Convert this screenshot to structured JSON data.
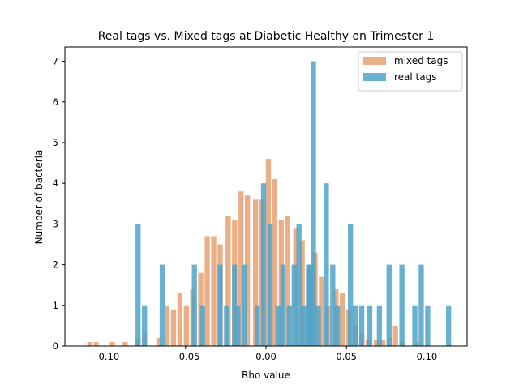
{
  "chart_data": {
    "type": "bar",
    "title": "Real tags vs. Mixed tags at Diabetic Healthy on Trimester 1",
    "xlabel": "Rho value",
    "ylabel": "Number of bacteria",
    "xlim": [
      -0.125,
      0.125
    ],
    "ylim": [
      0,
      7.35
    ],
    "xticks": [
      -0.1,
      -0.05,
      0.0,
      0.05,
      0.1
    ],
    "xtick_labels": [
      "−0.10",
      "−0.05",
      "0.00",
      "0.05",
      "0.10"
    ],
    "yticks": [
      0,
      1,
      2,
      3,
      4,
      5,
      6,
      7
    ],
    "ytick_labels": [
      "0",
      "1",
      "2",
      "3",
      "4",
      "5",
      "6",
      "7"
    ],
    "legend_position": "top-right",
    "series": [
      {
        "name": "mixed tags",
        "color": "#E8A173",
        "opacity": 0.85,
        "points": [
          [
            -0.1095,
            0.1
          ],
          [
            -0.1055,
            0.1
          ],
          [
            -0.0955,
            0.1
          ],
          [
            -0.0875,
            0.1
          ],
          [
            -0.0795,
            0.2
          ],
          [
            -0.0755,
            0.3
          ],
          [
            -0.0665,
            0.2
          ],
          [
            -0.0615,
            1.0
          ],
          [
            -0.0575,
            0.9
          ],
          [
            -0.0535,
            1.3
          ],
          [
            -0.0495,
            1.0
          ],
          [
            -0.0455,
            1.4
          ],
          [
            -0.0405,
            1.8
          ],
          [
            -0.0365,
            2.7
          ],
          [
            -0.0325,
            2.7
          ],
          [
            -0.0285,
            2.5
          ],
          [
            -0.0235,
            3.2
          ],
          [
            -0.0195,
            3.1
          ],
          [
            -0.0155,
            3.8
          ],
          [
            -0.0115,
            3.7
          ],
          [
            -0.0065,
            3.6
          ],
          [
            -0.0025,
            3.6
          ],
          [
            0.0015,
            4.6
          ],
          [
            0.0055,
            4.1
          ],
          [
            0.0095,
            3.1
          ],
          [
            0.0135,
            3.2
          ],
          [
            0.0185,
            2.9
          ],
          [
            0.0225,
            2.6
          ],
          [
            0.0265,
            1.9
          ],
          [
            0.0305,
            2.3
          ],
          [
            0.0345,
            1.7
          ],
          [
            0.0385,
            1.0
          ],
          [
            0.0435,
            1.4
          ],
          [
            0.0475,
            1.3
          ],
          [
            0.0515,
            0.9
          ],
          [
            0.0555,
            0.5
          ],
          [
            0.0595,
            0.3
          ],
          [
            0.0635,
            0.15
          ],
          [
            0.0685,
            0.15
          ],
          [
            0.0725,
            0.15
          ],
          [
            0.0765,
            0.2
          ],
          [
            0.0805,
            0.5
          ],
          [
            0.0845,
            0.1
          ],
          [
            0.0935,
            0.1
          ]
        ]
      },
      {
        "name": "real tags",
        "color": "#4FA3C9",
        "opacity": 0.85,
        "points": [
          [
            -0.0795,
            3
          ],
          [
            -0.0755,
            1
          ],
          [
            -0.0645,
            2
          ],
          [
            -0.0445,
            2
          ],
          [
            -0.0395,
            1
          ],
          [
            -0.0285,
            2
          ],
          [
            -0.0245,
            1
          ],
          [
            -0.0195,
            2
          ],
          [
            -0.0175,
            1
          ],
          [
            -0.0135,
            2
          ],
          [
            -0.0055,
            1
          ],
          [
            -0.0015,
            4
          ],
          [
            0.0025,
            3
          ],
          [
            0.0075,
            1
          ],
          [
            0.0105,
            2
          ],
          [
            0.0145,
            1
          ],
          [
            0.0175,
            2
          ],
          [
            0.0205,
            3
          ],
          [
            0.0235,
            1
          ],
          [
            0.0265,
            2
          ],
          [
            0.0275,
            2
          ],
          [
            0.0295,
            7
          ],
          [
            0.0325,
            1
          ],
          [
            0.0375,
            4
          ],
          [
            0.0415,
            2
          ],
          [
            0.0445,
            1
          ],
          [
            0.0495,
            0
          ],
          [
            0.0525,
            3
          ],
          [
            0.0555,
            1
          ],
          [
            0.0595,
            1
          ],
          [
            0.0645,
            1
          ],
          [
            0.0705,
            1
          ],
          [
            0.0765,
            2
          ],
          [
            0.0845,
            2
          ],
          [
            0.0925,
            1
          ],
          [
            0.0965,
            2
          ],
          [
            0.1005,
            1
          ],
          [
            0.1135,
            1
          ]
        ]
      }
    ]
  }
}
